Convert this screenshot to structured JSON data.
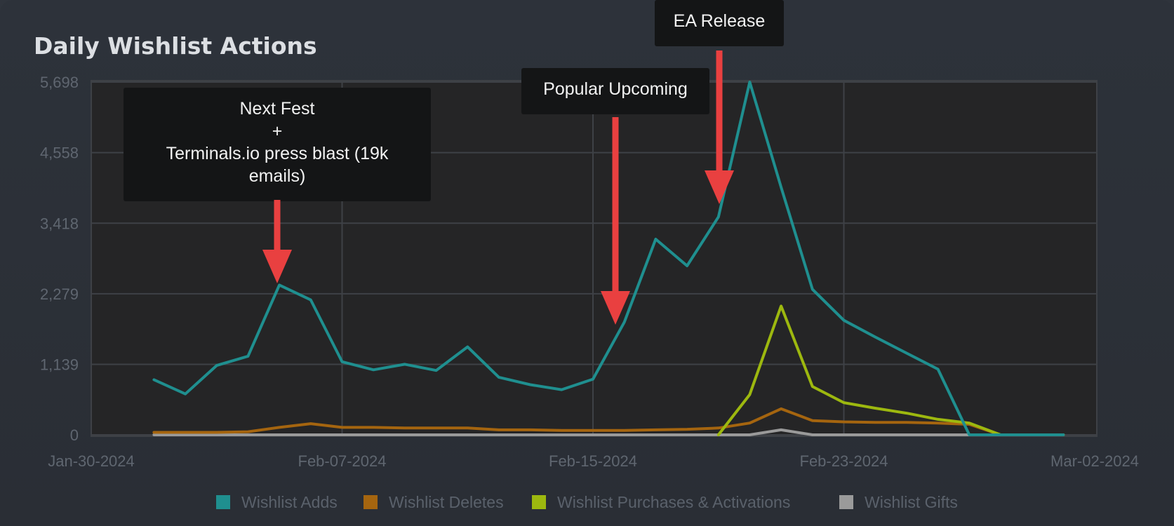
{
  "chart_data": {
    "type": "line",
    "title": "Daily Wishlist Actions",
    "xlabel": "",
    "ylabel": "",
    "x_ticks": [
      "Jan-30-2024",
      "Feb-07-2024",
      "Feb-15-2024",
      "Feb-23-2024",
      "Mar-02-2024"
    ],
    "y_ticks": [
      "0",
      "1,139",
      "2,279",
      "3,418",
      "4,558",
      "5,698"
    ],
    "ylim": [
      0,
      5698
    ],
    "xlim": [
      "2024-01-30",
      "2024-03-02"
    ],
    "grid": true,
    "legend_position": "bottom",
    "x": [
      "2024-02-01",
      "2024-02-02",
      "2024-02-03",
      "2024-02-04",
      "2024-02-05",
      "2024-02-06",
      "2024-02-07",
      "2024-02-08",
      "2024-02-09",
      "2024-02-10",
      "2024-02-11",
      "2024-02-12",
      "2024-02-13",
      "2024-02-14",
      "2024-02-15",
      "2024-02-16",
      "2024-02-17",
      "2024-02-18",
      "2024-02-19",
      "2024-02-20",
      "2024-02-21",
      "2024-02-22",
      "2024-02-23",
      "2024-02-24",
      "2024-02-25",
      "2024-02-26",
      "2024-02-27",
      "2024-02-28",
      "2024-02-29",
      "2024-03-01"
    ],
    "series": [
      {
        "name": "Wishlist Adds",
        "color": "#1f8f8f",
        "values": [
          890,
          660,
          1120,
          1270,
          2420,
          2180,
          1180,
          1050,
          1140,
          1040,
          1420,
          930,
          810,
          730,
          900,
          1820,
          3160,
          2730,
          3520,
          5698,
          4000,
          2350,
          1850,
          1580,
          1320,
          1060,
          0,
          0,
          0,
          0
        ]
      },
      {
        "name": "Wishlist Deletes",
        "color": "#a5650f",
        "values": [
          40,
          40,
          40,
          50,
          120,
          180,
          120,
          120,
          110,
          110,
          110,
          80,
          80,
          70,
          70,
          70,
          80,
          90,
          110,
          190,
          420,
          230,
          210,
          200,
          200,
          190,
          170,
          0,
          0,
          0
        ]
      },
      {
        "name": "Wishlist Purchases & Activations",
        "color": "#9db80f",
        "values": [
          null,
          null,
          null,
          null,
          null,
          null,
          null,
          null,
          null,
          null,
          null,
          null,
          null,
          null,
          null,
          null,
          null,
          null,
          0,
          650,
          2080,
          780,
          520,
          430,
          350,
          250,
          190,
          0,
          0,
          0
        ]
      },
      {
        "name": "Wishlist Gifts",
        "color": "#9a9a9a",
        "values": [
          0,
          0,
          0,
          0,
          0,
          0,
          0,
          0,
          0,
          0,
          0,
          0,
          0,
          0,
          0,
          0,
          0,
          0,
          0,
          0,
          80,
          0,
          0,
          0,
          0,
          0,
          0,
          0,
          0,
          0
        ]
      }
    ],
    "annotations": [
      {
        "lines": [
          "Next Fest",
          "+",
          "Terminals.io press blast (19k",
          "emails)"
        ],
        "date": "2024-02-05",
        "value": 2500
      },
      {
        "lines": [
          "Popular Upcoming"
        ],
        "date": "2024-02-16",
        "value": 1850
      },
      {
        "lines": [
          "EA Release"
        ],
        "date": "2024-02-20",
        "value": 3750
      }
    ]
  },
  "colors": {
    "background": "#2d323a",
    "plot_background": "#252526",
    "grid": "#3e4146",
    "arrow": "#e94040",
    "annotation_box": "#141516"
  }
}
